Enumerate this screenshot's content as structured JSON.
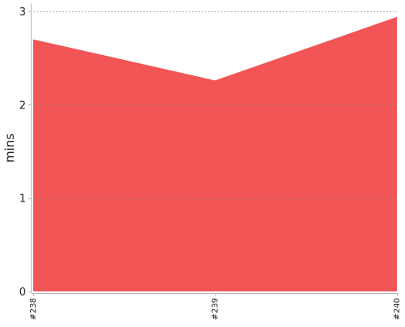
{
  "chart_data": {
    "type": "area",
    "categories": [
      "#238",
      "#239",
      "#240"
    ],
    "series": [
      {
        "values": [
          2.7,
          2.26,
          2.94
        ],
        "color": "#f15555"
      }
    ],
    "xlabel": "",
    "ylabel": "mins",
    "ylim": [
      0,
      3
    ],
    "y_ticks": [
      "0",
      "1",
      "2",
      "3"
    ],
    "grid": true,
    "grid_color": "#8a8a8a"
  }
}
